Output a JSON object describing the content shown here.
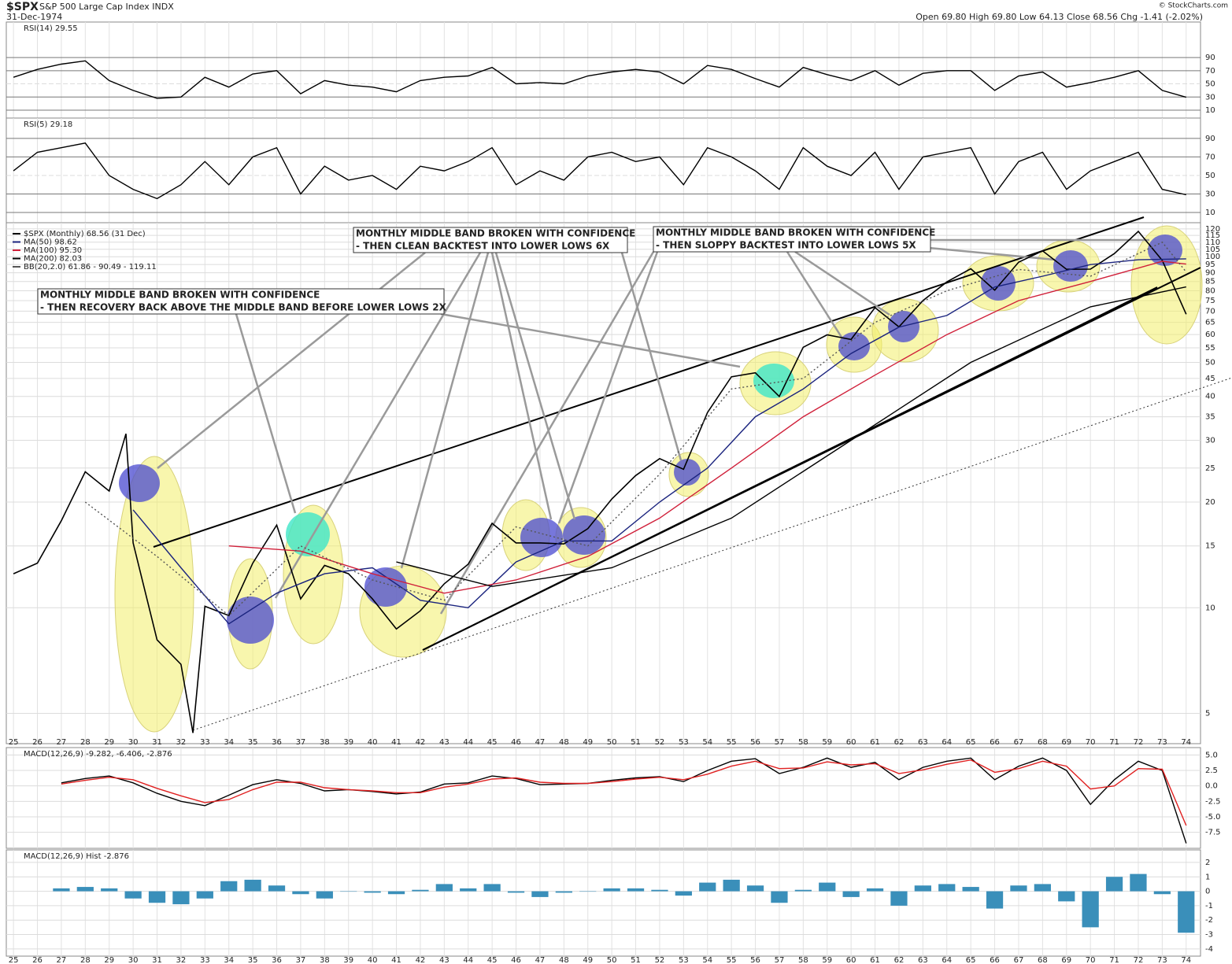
{
  "header": {
    "symbol": "$SPX",
    "name": "S&P 500 Large Cap Index INDX",
    "date": "31-Dec-1974",
    "quote": "Open 69.80 High 69.80 Low 64.13 Close 68.56 Chg -1.41 (-2.02%)",
    "credit": "© StockCharts.com"
  },
  "chart_data": [
    {
      "type": "line",
      "title": "RSI(14) 29.55",
      "ylim": [
        -2,
        144
      ],
      "yticks": [
        10,
        30,
        50,
        70,
        90
      ],
      "grid": true,
      "x": [
        1925,
        1926,
        1927,
        1928,
        1929,
        1930,
        1931,
        1932,
        1933,
        1934,
        1935,
        1936,
        1937,
        1938,
        1939,
        1940,
        1941,
        1942,
        1943,
        1944,
        1945,
        1946,
        1947,
        1948,
        1949,
        1950,
        1951,
        1952,
        1953,
        1954,
        1955,
        1956,
        1957,
        1958,
        1959,
        1960,
        1961,
        1962,
        1963,
        1964,
        1965,
        1966,
        1967,
        1968,
        1969,
        1970,
        1971,
        1972,
        1973,
        1974
      ],
      "series": [
        {
          "color": "#000000",
          "values": [
            60,
            72,
            80,
            85,
            55,
            40,
            28,
            30,
            60,
            45,
            65,
            70,
            35,
            55,
            48,
            45,
            38,
            55,
            60,
            62,
            75,
            50,
            52,
            50,
            62,
            68,
            72,
            68,
            50,
            78,
            72,
            58,
            45,
            75,
            64,
            55,
            70,
            48,
            66,
            70,
            70,
            40,
            62,
            68,
            45,
            52,
            60,
            70,
            40,
            29.55
          ]
        }
      ]
    },
    {
      "type": "line",
      "title": "RSI(5) 29.18",
      "ylim": [
        -1,
        112
      ],
      "yticks": [
        10,
        30,
        50,
        70,
        90
      ],
      "grid": true,
      "x": [
        1925,
        1926,
        1927,
        1928,
        1929,
        1930,
        1931,
        1932,
        1933,
        1934,
        1935,
        1936,
        1937,
        1938,
        1939,
        1940,
        1941,
        1942,
        1943,
        1944,
        1945,
        1946,
        1947,
        1948,
        1949,
        1950,
        1951,
        1952,
        1953,
        1954,
        1955,
        1956,
        1957,
        1958,
        1959,
        1960,
        1961,
        1962,
        1963,
        1964,
        1965,
        1966,
        1967,
        1968,
        1969,
        1970,
        1971,
        1972,
        1973,
        1974
      ],
      "series": [
        {
          "color": "#000000",
          "values": [
            55,
            75,
            80,
            85,
            50,
            35,
            25,
            40,
            65,
            40,
            70,
            80,
            30,
            60,
            45,
            50,
            35,
            60,
            55,
            65,
            80,
            40,
            55,
            45,
            70,
            75,
            65,
            70,
            40,
            80,
            70,
            55,
            35,
            80,
            60,
            50,
            75,
            35,
            70,
            75,
            80,
            30,
            65,
            75,
            35,
            55,
            65,
            75,
            35,
            29.18
          ]
        }
      ]
    },
    {
      "type": "line",
      "log_scale": true,
      "grid": true,
      "ylim": [
        4.1,
        125
      ],
      "xlim": [
        1924.7,
        1974.6
      ],
      "yticks": [
        5,
        10,
        15,
        20,
        25,
        30,
        35,
        40,
        45,
        50,
        55,
        60,
        65,
        70,
        75,
        80,
        85,
        90,
        95,
        100,
        105,
        110,
        115,
        120
      ],
      "xticks": [
        {
          "value": 1925,
          "label": "25"
        },
        {
          "value": 1926,
          "label": "26"
        },
        {
          "value": 1927,
          "label": "27"
        },
        {
          "value": 1928,
          "label": "28"
        },
        {
          "value": 1929,
          "label": "29"
        },
        {
          "value": 1930,
          "label": "30"
        },
        {
          "value": 1931,
          "label": "31"
        },
        {
          "value": 1932,
          "label": "32"
        },
        {
          "value": 1933,
          "label": "33"
        },
        {
          "value": 1934,
          "label": "34"
        },
        {
          "value": 1935,
          "label": "35"
        },
        {
          "value": 1936,
          "label": "36"
        },
        {
          "value": 1937,
          "label": "37"
        },
        {
          "value": 1938,
          "label": "38"
        },
        {
          "value": 1939,
          "label": "39"
        },
        {
          "value": 1940,
          "label": "40"
        },
        {
          "value": 1941,
          "label": "41"
        },
        {
          "value": 1942,
          "label": "42"
        },
        {
          "value": 1943,
          "label": "43"
        },
        {
          "value": 1944,
          "label": "44"
        },
        {
          "value": 1945,
          "label": "45"
        },
        {
          "value": 1946,
          "label": "46"
        },
        {
          "value": 1947,
          "label": "47"
        },
        {
          "value": 1948,
          "label": "48"
        },
        {
          "value": 1949,
          "label": "49"
        },
        {
          "value": 1950,
          "label": "50"
        },
        {
          "value": 1951,
          "label": "51"
        },
        {
          "value": 1952,
          "label": "52"
        },
        {
          "value": 1953,
          "label": "53"
        },
        {
          "value": 1954,
          "label": "54"
        },
        {
          "value": 1955,
          "label": "55"
        },
        {
          "value": 1956,
          "label": "56"
        },
        {
          "value": 1957,
          "label": "57"
        },
        {
          "value": 1958,
          "label": "58"
        },
        {
          "value": 1959,
          "label": "59"
        },
        {
          "value": 1960,
          "label": "60"
        },
        {
          "value": 1961,
          "label": "61"
        },
        {
          "value": 1962,
          "label": "62"
        },
        {
          "value": 1963,
          "label": "63"
        },
        {
          "value": 1964,
          "label": "64"
        },
        {
          "value": 1965,
          "label": "65"
        },
        {
          "value": 1966,
          "label": "66"
        },
        {
          "value": 1967,
          "label": "67"
        },
        {
          "value": 1968,
          "label": "68"
        },
        {
          "value": 1969,
          "label": "69"
        },
        {
          "value": 1970,
          "label": "70"
        },
        {
          "value": 1971,
          "label": "71"
        },
        {
          "value": 1972,
          "label": "72"
        },
        {
          "value": 1973,
          "label": "73"
        },
        {
          "value": 1974,
          "label": "74"
        }
      ],
      "series": [
        {
          "name": "$SPX (Monthly) 68.56 (31 Dec)",
          "color": "#000000",
          "x": [
            1925,
            1926,
            1927,
            1928,
            1929,
            1929.7,
            1930,
            1931,
            1932,
            1932.5,
            1933,
            1934,
            1935,
            1936,
            1937,
            1938,
            1939,
            1940,
            1941,
            1942,
            1943,
            1944,
            1945,
            1946,
            1947,
            1948,
            1949,
            1950,
            1951,
            1952,
            1953,
            1954,
            1955,
            1956,
            1957,
            1958,
            1959,
            1960,
            1961,
            1962,
            1963,
            1964,
            1965,
            1966,
            1967,
            1968,
            1969,
            1970,
            1971,
            1972,
            1973,
            1974
          ],
          "values": [
            12.5,
            13.4,
            17.7,
            24.4,
            21.5,
            31.3,
            15.3,
            8.1,
            6.9,
            4.4,
            10.1,
            9.5,
            13.4,
            17.2,
            10.6,
            13.2,
            12.5,
            10.6,
            8.7,
            9.8,
            11.7,
            13.3,
            17.4,
            15.3,
            15.3,
            15.2,
            16.8,
            20.4,
            23.8,
            26.6,
            24.8,
            35.98,
            45.5,
            46.7,
            39.99,
            55.2,
            59.9,
            58.1,
            71.6,
            63.1,
            75.0,
            84.8,
            92.4,
            80.3,
            96.5,
            103.9,
            92.1,
            92.2,
            102.1,
            118.1,
            97.6,
            68.56
          ]
        },
        {
          "name": "MA(50) 98.62",
          "color": "#1a237e",
          "x": [
            1930,
            1932,
            1934,
            1936,
            1938,
            1940,
            1942,
            1944,
            1946,
            1948,
            1950,
            1952,
            1954,
            1956,
            1958,
            1960,
            1962,
            1964,
            1966,
            1968,
            1970,
            1972,
            1974
          ],
          "values": [
            19,
            13,
            9,
            11,
            12.5,
            13,
            10.5,
            10,
            13.5,
            15.5,
            15.5,
            20,
            25,
            35,
            42,
            53,
            63,
            68,
            82,
            88,
            95,
            98,
            98.62
          ]
        },
        {
          "name": "MA(100) 95.30",
          "color": "#d0203a",
          "x": [
            1934,
            1937,
            1940,
            1943,
            1946,
            1949,
            1952,
            1955,
            1958,
            1961,
            1964,
            1967,
            1970,
            1973,
            1974
          ],
          "values": [
            15,
            14.5,
            12.5,
            11,
            12,
            14,
            18,
            25,
            35,
            46,
            60,
            75,
            85,
            97,
            95.3
          ]
        },
        {
          "name": "MA(200) 82.03",
          "color": "#000000",
          "x": [
            1941,
            1945,
            1950,
            1955,
            1960,
            1965,
            1970,
            1974
          ],
          "values": [
            13.5,
            11.5,
            13,
            18,
            30,
            50,
            72,
            82.03
          ]
        },
        {
          "name": "BB(20,2.0) 61.86 - 90.49 - 119.11",
          "color": "#555555",
          "x": [
            1928,
            1931,
            1934,
            1937,
            1940,
            1943,
            1946,
            1949,
            1952,
            1955,
            1958,
            1961,
            1964,
            1967,
            1970,
            1973,
            1974
          ],
          "values": [
            20,
            14,
            9.5,
            15,
            12,
            10.5,
            17,
            15,
            24,
            42,
            45,
            65,
            80,
            92,
            88,
            110,
            90.49
          ]
        }
      ],
      "annotations": [
        {
          "lines": [
            "MONTHLY MIDDLE BAND BROKEN WITH CONFIDENCE",
            "- THEN RECOVERY BACK ABOVE THE MIDDLE BAND BEFORE LOWER LOWS 2X"
          ]
        },
        {
          "lines": [
            "MONTHLY MIDDLE BAND BROKEN WITH CONFIDENCE",
            "- THEN CLEAN BACKTEST INTO LOWER LOWS 6X"
          ]
        },
        {
          "lines": [
            "MONTHLY MIDDLE BAND BROKEN WITH CONFIDENCE",
            "- THEN SLOPPY BACKTEST INTO LOWER LOWS 5X"
          ]
        }
      ]
    },
    {
      "type": "line",
      "title": "MACD(12,26,9) -9.282, -6.406, -2.876",
      "ylim": [
        -10.1,
        6.2
      ],
      "grid": true,
      "yticks": [
        {
          "value": 5,
          "label": "5.0"
        },
        2.5,
        {
          "value": 0,
          "label": "0.0"
        },
        -2.5,
        {
          "value": -5,
          "label": "-5.0"
        },
        -7.5
      ],
      "x": [
        1927,
        1928,
        1929,
        1930,
        1931,
        1932,
        1933,
        1934,
        1935,
        1936,
        1937,
        1938,
        1939,
        1940,
        1941,
        1942,
        1943,
        1944,
        1945,
        1946,
        1947,
        1948,
        1949,
        1950,
        1951,
        1952,
        1953,
        1954,
        1955,
        1956,
        1957,
        1958,
        1959,
        1960,
        1961,
        1962,
        1963,
        1964,
        1965,
        1966,
        1967,
        1968,
        1969,
        1970,
        1971,
        1972,
        1973,
        1974
      ],
      "series": [
        {
          "color": "#000000",
          "values": [
            0.5,
            1.2,
            1.6,
            0.5,
            -1.2,
            -2.5,
            -3.2,
            -1.5,
            0.2,
            1.0,
            0.4,
            -0.8,
            -0.6,
            -0.9,
            -1.3,
            -1.0,
            0.3,
            0.5,
            1.6,
            1.2,
            0.2,
            0.3,
            0.4,
            0.9,
            1.3,
            1.5,
            0.7,
            2.5,
            4.0,
            4.4,
            2.0,
            3.0,
            4.5,
            3.0,
            3.8,
            1.0,
            3.0,
            4.0,
            4.5,
            1.0,
            3.2,
            4.5,
            2.5,
            -3.0,
            1.0,
            4.0,
            2.5,
            -9.282
          ]
        },
        {
          "color": "#e02020",
          "values": [
            0.3,
            0.9,
            1.4,
            1.0,
            -0.4,
            -1.6,
            -2.7,
            -2.2,
            -0.6,
            0.6,
            0.6,
            -0.3,
            -0.6,
            -0.8,
            -1.1,
            -1.1,
            -0.2,
            0.3,
            1.1,
            1.3,
            0.6,
            0.4,
            0.4,
            0.7,
            1.1,
            1.4,
            1.0,
            1.9,
            3.2,
            4.0,
            2.8,
            2.9,
            3.9,
            3.4,
            3.6,
            2.0,
            2.6,
            3.5,
            4.2,
            2.2,
            2.8,
            4.0,
            3.2,
            -0.5,
            0.0,
            2.8,
            2.7,
            -6.406
          ]
        }
      ]
    },
    {
      "type": "bar",
      "title": "MACD(12,26,9) Hist -2.876",
      "ylim": [
        -4.5,
        2.87
      ],
      "grid": true,
      "color": "#3a8fba",
      "yticks": [
        -4,
        -3,
        -2,
        -1,
        0,
        1,
        2
      ],
      "x": [
        1927,
        1928,
        1929,
        1930,
        1931,
        1932,
        1933,
        1934,
        1935,
        1936,
        1937,
        1938,
        1939,
        1940,
        1941,
        1942,
        1943,
        1944,
        1945,
        1946,
        1947,
        1948,
        1949,
        1950,
        1951,
        1952,
        1953,
        1954,
        1955,
        1956,
        1957,
        1958,
        1959,
        1960,
        1961,
        1962,
        1963,
        1964,
        1965,
        1966,
        1967,
        1968,
        1969,
        1970,
        1971,
        1972,
        1973,
        1974
      ],
      "values": [
        0.2,
        0.3,
        0.2,
        -0.5,
        -0.8,
        -0.9,
        -0.5,
        0.7,
        0.8,
        0.4,
        -0.2,
        -0.5,
        0,
        -0.1,
        -0.2,
        0.1,
        0.5,
        0.2,
        0.5,
        -0.1,
        -0.4,
        -0.1,
        0,
        0.2,
        0.2,
        0.1,
        -0.3,
        0.6,
        0.8,
        0.4,
        -0.8,
        0.1,
        0.6,
        -0.4,
        0.2,
        -1.0,
        0.4,
        0.5,
        0.3,
        -1.2,
        0.4,
        0.5,
        -0.7,
        -2.5,
        1.0,
        1.2,
        -0.2,
        -2.876
      ]
    }
  ]
}
